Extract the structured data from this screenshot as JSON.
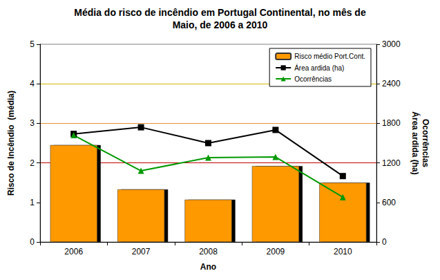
{
  "chart_data": {
    "type": "bar",
    "title": "Média do risco de incêndio em Portugal Continental, no mês de\nMaio, de 2006 a 2010",
    "xlabel": "Ano",
    "ylabel": "Risco de Incêndio  (média)",
    "y2label": "Ocorrências\nÁrea ardida (ha)",
    "categories": [
      "2006",
      "2007",
      "2008",
      "2009",
      "2010"
    ],
    "series": [
      {
        "name": "Risco médio Port.Cont.",
        "type": "bar",
        "color": "#ff9900",
        "values": [
          2.45,
          1.33,
          1.07,
          1.92,
          1.5
        ]
      },
      {
        "name": "Área ardida (ha)",
        "type": "line",
        "axis": "y2",
        "color": "#000000",
        "marker": "square",
        "line_style": "solid",
        "values": [
          1640,
          1740,
          1500,
          1700,
          1000
        ]
      },
      {
        "name": "Ocorrências",
        "type": "line",
        "axis": "y2",
        "color": "#009900",
        "marker": "triangle",
        "line_style": "solid",
        "values": [
          1620,
          1080,
          1280,
          1290,
          680
        ]
      }
    ],
    "ylim": [
      0,
      5
    ],
    "yticks": [
      0,
      1,
      2,
      3,
      4,
      5
    ],
    "y2lim": [
      0,
      3000
    ],
    "y2ticks": [
      0,
      600,
      1200,
      1800,
      2400,
      3000
    ],
    "grid": true,
    "legend": "upper right"
  }
}
